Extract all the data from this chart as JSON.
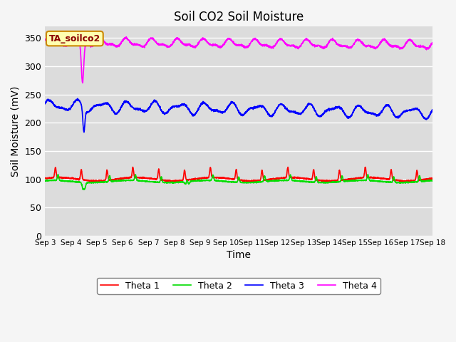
{
  "title": "Soil CO2 Soil Moisture",
  "xlabel": "Time",
  "ylabel": "Soil Moisture (mV)",
  "ylim": [
    0,
    370
  ],
  "yticks": [
    0,
    50,
    100,
    150,
    200,
    250,
    300,
    350
  ],
  "bg_color": "#dcdcdc",
  "fig_bg_color": "#f5f5f5",
  "line_colors": {
    "theta1": "#ff0000",
    "theta2": "#00dd00",
    "theta3": "#0000ff",
    "theta4": "#ff00ff"
  },
  "legend_labels": [
    "Theta 1",
    "Theta 2",
    "Theta 3",
    "Theta 4"
  ],
  "annotation_text": "TA_soilco2",
  "xtick_labels": [
    "Sep 3",
    "Sep 4",
    "Sep 5",
    "Sep 6",
    "Sep 7",
    "Sep 8",
    "Sep 9",
    "Sep 10",
    "Sep 11",
    "Sep 12",
    "Sep 13",
    "Sep 14",
    "Sep 15",
    "Sep 16",
    "Sep 17",
    "Sep 18"
  ]
}
